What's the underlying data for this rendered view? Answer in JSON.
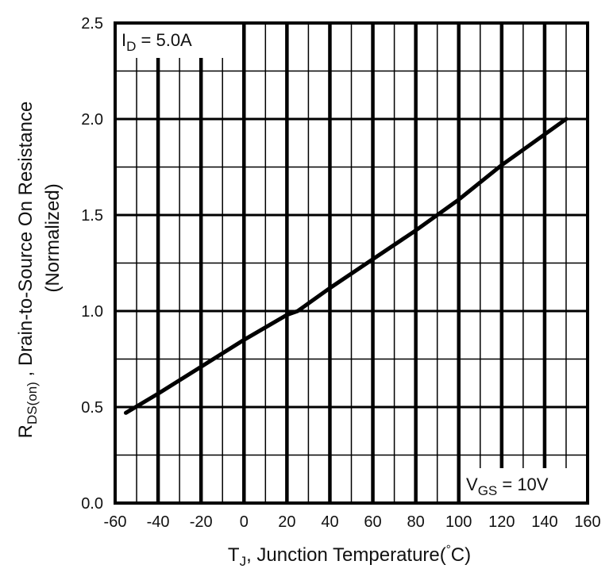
{
  "chart_data": {
    "type": "line",
    "xlabel": "T",
    "xlabel_sub": "J",
    "xlabel_rest": ", Junction Temperature(",
    "xlabel_deg": "°",
    "xlabel_end": "C)",
    "ylabel_main": "R",
    "ylabel_sub": "DS(on)",
    "ylabel_rest": " , Drain-to-Source On Resistance",
    "ylabel_line2": "(Normalized)",
    "xlim": [
      -60,
      160
    ],
    "ylim": [
      0.0,
      2.5
    ],
    "x_ticks": [
      "-60",
      "-40",
      "-20",
      "0",
      "20",
      "40",
      "60",
      "80",
      "100",
      "120",
      "140",
      "160"
    ],
    "y_ticks": [
      "0.0",
      "0.5",
      "1.0",
      "1.5",
      "2.0",
      "2.5"
    ],
    "grid": true,
    "annotations": {
      "top_left": {
        "main": "I",
        "sub": "D",
        "rest": " = 5.0A"
      },
      "bottom_right": {
        "main": "V",
        "sub": "GS",
        "rest": " = 10V"
      }
    },
    "series": [
      {
        "x": [
          -55,
          -40,
          -20,
          0,
          20,
          25,
          40,
          60,
          80,
          100,
          120,
          140,
          150
        ],
        "y": [
          0.47,
          0.57,
          0.71,
          0.85,
          0.98,
          1.0,
          1.12,
          1.27,
          1.42,
          1.58,
          1.76,
          1.92,
          2.0
        ]
      }
    ]
  }
}
